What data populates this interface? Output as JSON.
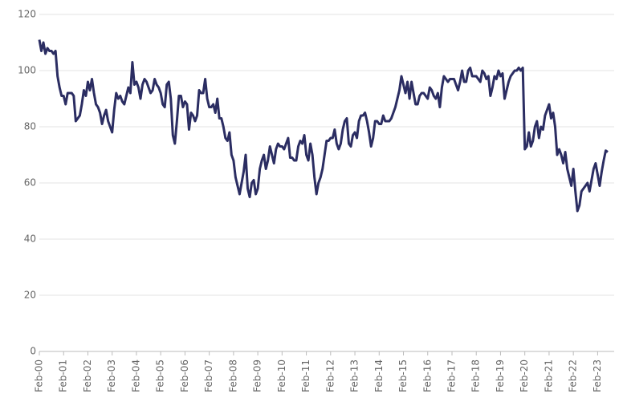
{
  "chart_data": {
    "type": "line",
    "color": "#2b2d62",
    "grid": true,
    "ylim": [
      0,
      120
    ],
    "yticks": [
      0,
      20,
      40,
      60,
      80,
      100,
      120
    ],
    "categories": [
      "Feb-00",
      null,
      null,
      null,
      null,
      null,
      null,
      null,
      null,
      null,
      null,
      null,
      "Feb-01",
      null,
      null,
      null,
      null,
      null,
      null,
      null,
      null,
      null,
      null,
      null,
      "Feb-02",
      null,
      null,
      null,
      null,
      null,
      null,
      null,
      null,
      null,
      null,
      null,
      "Feb-03",
      null,
      null,
      null,
      null,
      null,
      null,
      null,
      null,
      null,
      null,
      null,
      "Feb-04",
      null,
      null,
      null,
      null,
      null,
      null,
      null,
      null,
      null,
      null,
      null,
      "Feb-05",
      null,
      null,
      null,
      null,
      null,
      null,
      null,
      null,
      null,
      null,
      null,
      "Feb-06",
      null,
      null,
      null,
      null,
      null,
      null,
      null,
      null,
      null,
      null,
      null,
      "Feb-07",
      null,
      null,
      null,
      null,
      null,
      null,
      null,
      null,
      null,
      null,
      null,
      "Feb-08",
      null,
      null,
      null,
      null,
      null,
      null,
      null,
      null,
      null,
      null,
      null,
      "Feb-09",
      null,
      null,
      null,
      null,
      null,
      null,
      null,
      null,
      null,
      null,
      null,
      "Feb-10",
      null,
      null,
      null,
      null,
      null,
      null,
      null,
      null,
      null,
      null,
      null,
      "Feb-11",
      null,
      null,
      null,
      null,
      null,
      null,
      null,
      null,
      null,
      null,
      null,
      "Feb-12",
      null,
      null,
      null,
      null,
      null,
      null,
      null,
      null,
      null,
      null,
      null,
      "Feb-13",
      null,
      null,
      null,
      null,
      null,
      null,
      null,
      null,
      null,
      null,
      null,
      "Feb-14",
      null,
      null,
      null,
      null,
      null,
      null,
      null,
      null,
      null,
      null,
      null,
      "Feb-15",
      null,
      null,
      null,
      null,
      null,
      null,
      null,
      null,
      null,
      null,
      null,
      "Feb-16",
      null,
      null,
      null,
      null,
      null,
      null,
      null,
      null,
      null,
      null,
      null,
      "Feb-17",
      null,
      null,
      null,
      null,
      null,
      null,
      null,
      null,
      null,
      null,
      null,
      "Feb-18",
      null,
      null,
      null,
      null,
      null,
      null,
      null,
      null,
      null,
      null,
      null,
      "Feb-19",
      null,
      null,
      null,
      null,
      null,
      null,
      null,
      null,
      null,
      null,
      null,
      "Feb-20",
      null,
      null,
      null,
      null,
      null,
      null,
      null,
      null,
      null,
      null,
      null,
      "Feb-21",
      null,
      null,
      null,
      null,
      null,
      null,
      null,
      null,
      null,
      null,
      null,
      "Feb-22",
      null,
      null,
      null,
      null,
      null,
      null,
      null,
      null,
      null,
      null,
      null,
      "Feb-23",
      null,
      null,
      null,
      null,
      null
    ],
    "values": [
      111,
      107,
      110,
      106,
      108,
      107,
      107,
      106,
      107,
      98,
      94,
      91,
      91,
      88,
      92,
      92,
      92,
      91,
      82,
      83,
      84,
      88,
      93,
      91,
      96,
      93,
      97,
      92,
      88,
      87,
      85,
      81,
      84,
      86,
      82,
      80,
      78,
      86,
      92,
      90,
      91,
      89,
      88,
      91,
      94,
      92,
      103,
      95,
      96,
      94,
      90,
      95,
      97,
      96,
      94,
      92,
      93,
      97,
      95,
      94,
      92,
      88,
      87,
      95,
      96,
      90,
      77,
      74,
      82,
      91,
      91,
      87,
      89,
      88,
      79,
      85,
      84,
      82,
      84,
      93,
      92,
      92,
      97,
      90,
      87,
      87,
      88,
      85,
      90,
      83,
      83,
      80,
      76,
      75,
      78,
      70,
      68,
      62,
      59,
      56,
      60,
      64,
      70,
      58,
      55,
      60,
      61,
      56,
      58,
      65,
      68,
      70,
      65,
      68,
      73,
      70,
      67,
      72,
      74,
      73,
      73,
      72,
      74,
      76,
      69,
      69,
      68,
      68,
      73,
      75,
      74,
      77,
      70,
      68,
      74,
      70,
      62,
      56,
      60,
      62,
      65,
      70,
      75,
      75,
      76,
      76,
      79,
      74,
      72,
      74,
      79,
      82,
      83,
      74,
      73,
      77,
      78,
      76,
      82,
      84,
      84,
      85,
      82,
      78,
      73,
      76,
      82,
      82,
      81,
      81,
      84,
      82,
      82,
      82,
      83,
      85,
      87,
      90,
      93,
      98,
      95,
      92,
      96,
      90,
      96,
      92,
      88,
      88,
      91,
      92,
      92,
      91,
      90,
      94,
      93,
      91,
      90,
      92,
      87,
      94,
      98,
      97,
      96,
      97,
      97,
      97,
      95,
      93,
      96,
      100,
      96,
      96,
      100,
      101,
      98,
      98,
      98,
      97,
      96,
      100,
      99,
      97,
      98,
      91,
      94,
      98,
      97,
      100,
      98,
      99,
      90,
      93,
      96,
      98,
      99,
      100,
      100,
      101,
      100,
      101,
      72,
      73,
      78,
      73,
      75,
      80,
      82,
      76,
      80,
      79,
      84,
      86,
      88,
      83,
      85,
      80,
      70,
      72,
      70,
      67,
      71,
      65,
      62,
      59,
      65,
      57,
      50,
      52,
      57,
      58,
      59,
      60,
      57,
      61,
      65,
      67,
      63,
      59,
      64,
      68,
      71.5,
      71
    ]
  }
}
